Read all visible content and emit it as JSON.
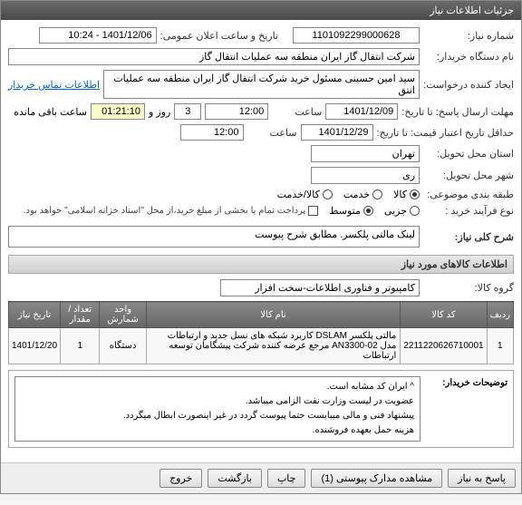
{
  "titlebar": "جزئیات اطلاعات نیاز",
  "form": {
    "need_no_lbl": "شماره نیاز:",
    "need_no": "1101092299000628",
    "announce_lbl": "تاریخ و ساعت اعلان عمومی:",
    "announce_val": "1401/12/06 - 10:24",
    "buyer_lbl": "نام دستگاه خریدار:",
    "buyer_val": "شرکت انتقال گاز ایران منطقه سه عملیات انتقال گاز",
    "creator_lbl": "ایجاد کننده درخواست:",
    "creator_val": "سید امین حسینی مسئول خرید شرکت انتقال گاز ایران منطقه سه عملیات انتق",
    "contact_link": "اطلاعات تماس خریدار",
    "deadline_lbl": "مهلت ارسال پاسخ: تا تاریخ:",
    "deadline_date": "1401/12/09",
    "time_lbl": "ساعت",
    "deadline_time": "12:00",
    "days_and": "روز و",
    "days_val": "3",
    "remaining_time": "01:21:10",
    "remaining_lbl": "ساعت باقی مانده",
    "validity_lbl": "حداقل تاریخ اعتبار قیمت: تا تاریخ:",
    "validity_date": "1401/12/29",
    "validity_time": "12:00",
    "place_lbl": "استان محل تحویل:",
    "place_val": "تهران",
    "city_lbl": "شهر محل تحویل:",
    "city_val": "ری",
    "category_lbl": "طبقه بندی موضوعی:",
    "cat_goods": "کالا",
    "cat_service": "خدمت",
    "cat_both": "کالا/خدمت",
    "buytype_lbl": "نوع فرآیند خرید :",
    "bt_low": "جزیی",
    "bt_mid": "متوسط",
    "bt_note": "پرداخت تمام یا بخشی از مبلغ خرید،از محل \"اسناد خزانه اسلامی\" خواهد بود.",
    "desc_lbl": "شرح کلی نیاز:",
    "desc_val": "لینک مالتی پلکسر. مطابق شرح پیوست",
    "goods_hdr": "اطلاعات کالاهای مورد نیاز",
    "group_lbl": "گروه کالا:",
    "group_val": "کامپیوتر و فناوری اطلاعات-سخت افزار"
  },
  "table": {
    "cols": [
      "ردیف",
      "کد کالا",
      "نام کالا",
      "واحد شمارش",
      "تعداد / مقدار",
      "تاریخ نیاز"
    ],
    "rows": [
      [
        "1",
        "2211220626710001",
        "مالتی پلکسر DSLAM کاربرد شبکه های نسل جدید و ارتباطات مدل AN3300-02 مرجع عرضه کننده شرکت پیشگامان توسعه ارتباطات",
        "دستگاه",
        "1",
        "1401/12/20"
      ]
    ]
  },
  "buyer_notes": {
    "lbl": "توضیحات خریدار:",
    "text": "^ ایران کد مشابه است.\nعضویت در لیست وزارت نفت الزامی میباشد.\nپیشنهاد فنی و مالی میبایست حتما پیوست گردد در غیر اینصورت ابطال میگردد.\nهزینه حمل بعهده فروشنده."
  },
  "footer": {
    "reply": "پاسخ به نیاز",
    "attach": "مشاهده مدارک پیوستی (1)",
    "print": "چاپ",
    "back": "بازگشت",
    "exit": "خروج"
  }
}
